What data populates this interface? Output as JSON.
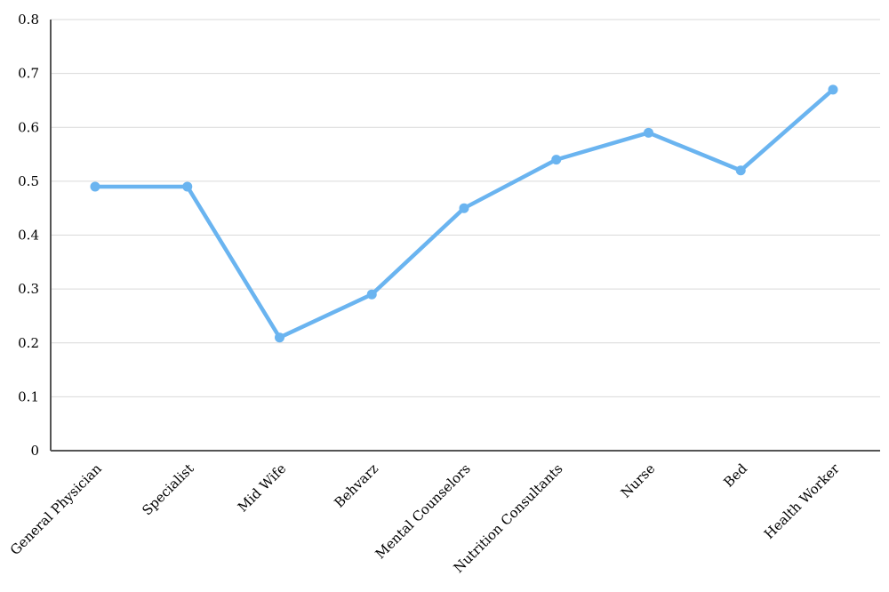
{
  "chart_data": {
    "type": "line",
    "categories": [
      "General Physician",
      "Specialist",
      "Mid Wife",
      "Behvarz",
      "Mental Counselors",
      "Nutrition Consultants",
      "Nurse",
      "Bed",
      "Health Worker"
    ],
    "series": [
      {
        "values": [
          0.49,
          0.49,
          0.21,
          0.29,
          0.45,
          0.54,
          0.59,
          0.52,
          0.67
        ],
        "color": "#6ab4f0"
      }
    ],
    "y_ticks": [
      "0",
      "0.1",
      "0.2",
      "0.3",
      "0.4",
      "0.5",
      "0.6",
      "0.7",
      "0.8"
    ],
    "ylim": [
      0,
      0.8
    ],
    "grid": "horizontal",
    "legend": "none"
  }
}
